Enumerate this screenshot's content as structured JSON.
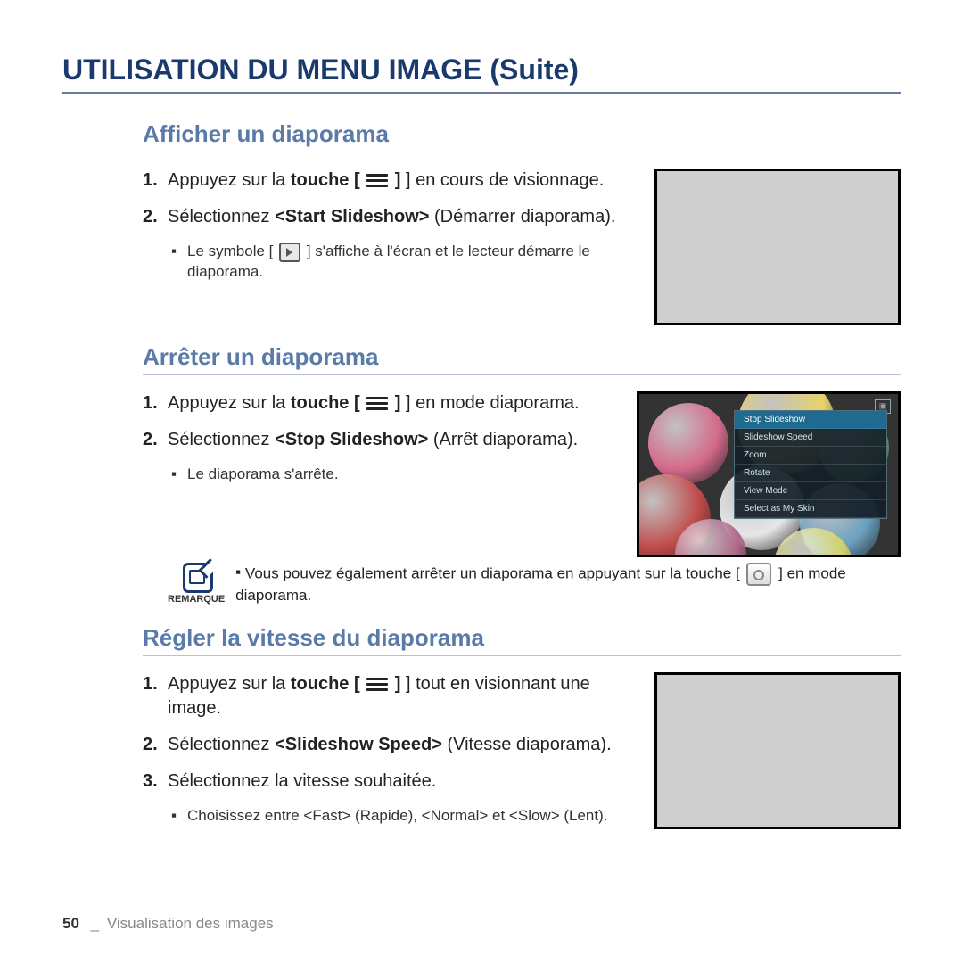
{
  "page_title": "UTILISATION DU MENU IMAGE (Suite)",
  "sections": {
    "s1": {
      "heading": "Afficher un diaporama",
      "step1_pre": "Appuyez sur la ",
      "step1_bold": "touche [",
      "step1_post": "] en cours de visionnage.",
      "step2_pre": "Sélectionnez ",
      "step2_bold": "<Start Slideshow>",
      "step2_post": " (Démarrer diaporama).",
      "bullet1_pre": "Le symbole [",
      "bullet1_post": "] s'affiche à l'écran et le lecteur démarre le diaporama."
    },
    "s2": {
      "heading": "Arrêter un diaporama",
      "step1_pre": "Appuyez sur la ",
      "step1_bold": "touche [",
      "step1_post": "] en mode diaporama.",
      "step2_pre": "Sélectionnez ",
      "step2_bold": "<Stop Slideshow>",
      "step2_post": " (Arrêt diaporama).",
      "bullet1": "Le diaporama s'arrête.",
      "remark_label": "REMARQUE",
      "remark_pre": "Vous pouvez également arrêter un diaporama en appuyant sur la touche [",
      "remark_post": "] en mode diaporama."
    },
    "s3": {
      "heading": "Régler la vitesse du diaporama",
      "step1_pre": "Appuyez sur la ",
      "step1_bold": "touche [",
      "step1_post": "] tout en visionnant une image.",
      "step2_pre": "Sélectionnez ",
      "step2_bold": "<Slideshow Speed>",
      "step2_post": " (Vitesse diaporama).",
      "step3": "Sélectionnez la vitesse souhaitée.",
      "bullet1": "Choisissez entre <Fast> (Rapide), <Normal> et <Slow> (Lent)."
    }
  },
  "menu_overlay": {
    "items": [
      "Stop Slideshow",
      "Slideshow Speed",
      "Zoom",
      "Rotate",
      "View Mode",
      "Select as My Skin"
    ],
    "selected_index": 0,
    "ball_colors": [
      "#d46a8a",
      "#e8d36a",
      "#7fb06a",
      "#c04a4a",
      "#e6e6e6",
      "#6aa0c0",
      "#b06a8a",
      "#d0d06a"
    ]
  },
  "footer": {
    "page_number": "50",
    "separator": "_",
    "chapter": "Visualisation des images"
  },
  "colors": {
    "title": "#1a3a6e",
    "heading": "#5a7aa8",
    "rule": "#b8c2d6",
    "screenshot_fill": "#cfcfcf"
  }
}
